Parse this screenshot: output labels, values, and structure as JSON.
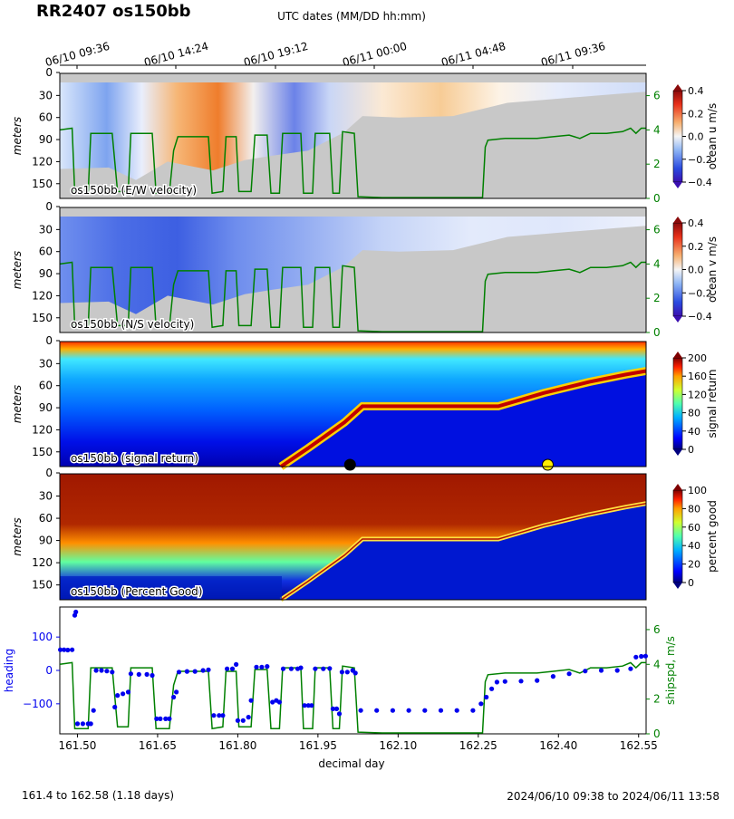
{
  "title": "RR2407 os150bb",
  "top_axis_label": "UTC dates (MM/DD hh:mm)",
  "top_ticks": [
    "06/10 09:36",
    "06/10 14:24",
    "06/10 19:12",
    "06/11 00:00",
    "06/11 04:48",
    "06/11 09:36"
  ],
  "footer_left": "161.4 to 162.58 (1.18 days)",
  "footer_right": "2024/06/10 09:38 to 2024/06/11 13:58",
  "colors": {
    "ship_speed": "#008000",
    "heading": "#0000ee",
    "bottom_mask": "#c8c8c8",
    "marker_black": "#000000",
    "marker_yellow": "#ffee00"
  },
  "chart_data": [
    {
      "type": "heatmap",
      "name": "u",
      "panel_label": "os150bb (E/W velocity)",
      "ylabel": "meters",
      "yticks": [
        0,
        30,
        60,
        90,
        120,
        150
      ],
      "ylim": [
        170,
        0
      ],
      "colorbar_label": "ocean u m/s",
      "colorbar_ticks": [
        "0.4",
        "0.2",
        "0.0",
        "−0.2",
        "−0.4"
      ],
      "colorbar_range": [
        -0.4,
        0.4
      ],
      "colormap": "bwr",
      "right_axis_ticks": [
        "0",
        "2",
        "4",
        "6"
      ],
      "right_axis_range": [
        0,
        7.3
      ]
    },
    {
      "type": "heatmap",
      "name": "v",
      "panel_label": "os150bb (N/S velocity)",
      "ylabel": "meters",
      "yticks": [
        0,
        30,
        60,
        90,
        120,
        150
      ],
      "ylim": [
        170,
        0
      ],
      "colorbar_label": "ocean v m/s",
      "colorbar_ticks": [
        "0.4",
        "0.2",
        "0.0",
        "−0.2",
        "−0.4"
      ],
      "colorbar_range": [
        -0.4,
        0.4
      ],
      "colormap": "bwr",
      "right_axis_ticks": [
        "0",
        "2",
        "4",
        "6"
      ],
      "right_axis_range": [
        0,
        7.3
      ]
    },
    {
      "type": "heatmap",
      "name": "amp",
      "panel_label": "os150bb (signal return)",
      "ylabel": "meters",
      "yticks": [
        0,
        30,
        60,
        90,
        120,
        150
      ],
      "ylim": [
        170,
        0
      ],
      "colorbar_label": "signal return",
      "colorbar_ticks": [
        "200",
        "160",
        "120",
        "80",
        "40",
        "0"
      ],
      "colorbar_range": [
        0,
        200
      ],
      "colormap": "jet",
      "markers": [
        {
          "x": 162.01,
          "color": "#000000"
        },
        {
          "x": 162.38,
          "color": "#ffee00"
        }
      ]
    },
    {
      "type": "heatmap",
      "name": "pg",
      "panel_label": "os150bb (Percent Good)",
      "ylabel": "meters",
      "yticks": [
        0,
        30,
        60,
        90,
        120,
        150
      ],
      "ylim": [
        170,
        0
      ],
      "colorbar_label": "percent good",
      "colorbar_ticks": [
        "100",
        "80",
        "60",
        "40",
        "20",
        "0"
      ],
      "colorbar_range": [
        0,
        100
      ],
      "colormap": "jet"
    },
    {
      "type": "scatter",
      "name": "heading",
      "xlabel": "decimal day",
      "ylabel": "heading",
      "ylabel_right": "shipspd, m/s",
      "xticks": [
        "161.50",
        "161.65",
        "161.80",
        "161.95",
        "162.10",
        "162.25",
        "162.40",
        "162.55"
      ],
      "xlim": [
        161.467,
        162.564
      ],
      "yticks": [
        "100",
        "0",
        "−100"
      ],
      "ylim": [
        -190,
        190
      ],
      "right_axis_ticks": [
        "0",
        "2",
        "4",
        "6"
      ],
      "right_axis_range": [
        0,
        7.3
      ],
      "heading_points": [
        [
          161.468,
          62
        ],
        [
          161.475,
          62
        ],
        [
          161.482,
          61
        ],
        [
          161.49,
          62
        ],
        [
          161.495,
          165
        ],
        [
          161.497,
          175
        ],
        [
          161.5,
          -160
        ],
        [
          161.51,
          -160
        ],
        [
          161.52,
          -160
        ],
        [
          161.525,
          -160
        ],
        [
          161.53,
          -120
        ],
        [
          161.535,
          0
        ],
        [
          161.545,
          0
        ],
        [
          161.555,
          -2
        ],
        [
          161.565,
          -5
        ],
        [
          161.57,
          -110
        ],
        [
          161.575,
          -75
        ],
        [
          161.585,
          -70
        ],
        [
          161.595,
          -65
        ],
        [
          161.6,
          -10
        ],
        [
          161.615,
          -12
        ],
        [
          161.63,
          -12
        ],
        [
          161.64,
          -15
        ],
        [
          161.648,
          -145
        ],
        [
          161.655,
          -145
        ],
        [
          161.665,
          -145
        ],
        [
          161.672,
          -145
        ],
        [
          161.68,
          -80
        ],
        [
          161.685,
          -65
        ],
        [
          161.69,
          -5
        ],
        [
          161.705,
          -3
        ],
        [
          161.72,
          -3
        ],
        [
          161.735,
          0
        ],
        [
          161.745,
          2
        ],
        [
          161.755,
          -135
        ],
        [
          161.765,
          -135
        ],
        [
          161.772,
          -135
        ],
        [
          161.78,
          5
        ],
        [
          161.79,
          5
        ],
        [
          161.797,
          18
        ],
        [
          161.8,
          -150
        ],
        [
          161.81,
          -150
        ],
        [
          161.82,
          -140
        ],
        [
          161.825,
          -90
        ],
        [
          161.835,
          10
        ],
        [
          161.845,
          10
        ],
        [
          161.855,
          12
        ],
        [
          161.865,
          -95
        ],
        [
          161.872,
          -90
        ],
        [
          161.878,
          -95
        ],
        [
          161.885,
          5
        ],
        [
          161.9,
          5
        ],
        [
          161.912,
          5
        ],
        [
          161.918,
          8
        ],
        [
          161.925,
          -105
        ],
        [
          161.932,
          -105
        ],
        [
          161.938,
          -105
        ],
        [
          161.945,
          5
        ],
        [
          161.96,
          5
        ],
        [
          161.972,
          6
        ],
        [
          161.978,
          -115
        ],
        [
          161.985,
          -115
        ],
        [
          161.99,
          -130
        ],
        [
          161.995,
          -5
        ],
        [
          162.005,
          -5
        ],
        [
          162.015,
          0
        ],
        [
          162.02,
          -8
        ],
        [
          162.03,
          -120
        ],
        [
          162.06,
          -120
        ],
        [
          162.09,
          -120
        ],
        [
          162.12,
          -120
        ],
        [
          162.15,
          -120
        ],
        [
          162.18,
          -120
        ],
        [
          162.21,
          -120
        ],
        [
          162.24,
          -120
        ],
        [
          162.255,
          -100
        ],
        [
          162.265,
          -80
        ],
        [
          162.275,
          -55
        ],
        [
          162.285,
          -35
        ],
        [
          162.3,
          -33
        ],
        [
          162.33,
          -32
        ],
        [
          162.36,
          -30
        ],
        [
          162.39,
          -18
        ],
        [
          162.42,
          -10
        ],
        [
          162.45,
          -2
        ],
        [
          162.48,
          0
        ],
        [
          162.51,
          0
        ],
        [
          162.535,
          5
        ],
        [
          162.545,
          40
        ],
        [
          162.555,
          42
        ],
        [
          162.563,
          43
        ]
      ],
      "ship_speed": [
        [
          161.467,
          4.0
        ],
        [
          161.49,
          4.1
        ],
        [
          161.495,
          0.3
        ],
        [
          161.52,
          0.3
        ],
        [
          161.525,
          3.8
        ],
        [
          161.565,
          3.8
        ],
        [
          161.575,
          0.4
        ],
        [
          161.595,
          0.4
        ],
        [
          161.6,
          3.8
        ],
        [
          161.64,
          3.8
        ],
        [
          161.647,
          0.3
        ],
        [
          161.672,
          0.3
        ],
        [
          161.68,
          2.8
        ],
        [
          161.688,
          3.6
        ],
        [
          161.745,
          3.6
        ],
        [
          161.752,
          0.3
        ],
        [
          161.772,
          0.4
        ],
        [
          161.778,
          3.6
        ],
        [
          161.797,
          3.6
        ],
        [
          161.802,
          0.4
        ],
        [
          161.825,
          0.4
        ],
        [
          161.832,
          3.7
        ],
        [
          161.855,
          3.7
        ],
        [
          161.862,
          0.3
        ],
        [
          161.878,
          0.3
        ],
        [
          161.884,
          3.8
        ],
        [
          161.918,
          3.8
        ],
        [
          161.923,
          0.3
        ],
        [
          161.94,
          0.3
        ],
        [
          161.945,
          3.8
        ],
        [
          161.972,
          3.8
        ],
        [
          161.978,
          0.3
        ],
        [
          161.99,
          0.3
        ],
        [
          161.996,
          3.9
        ],
        [
          162.018,
          3.8
        ],
        [
          162.025,
          0.1
        ],
        [
          162.07,
          0.05
        ],
        [
          162.15,
          0.05
        ],
        [
          162.258,
          0.05
        ],
        [
          162.263,
          3.0
        ],
        [
          162.268,
          3.4
        ],
        [
          162.3,
          3.5
        ],
        [
          162.36,
          3.5
        ],
        [
          162.39,
          3.6
        ],
        [
          162.42,
          3.7
        ],
        [
          162.44,
          3.5
        ],
        [
          162.46,
          3.8
        ],
        [
          162.49,
          3.8
        ],
        [
          162.52,
          3.9
        ],
        [
          162.535,
          4.1
        ],
        [
          162.545,
          3.8
        ],
        [
          162.555,
          4.1
        ],
        [
          162.564,
          4.1
        ]
      ]
    }
  ]
}
